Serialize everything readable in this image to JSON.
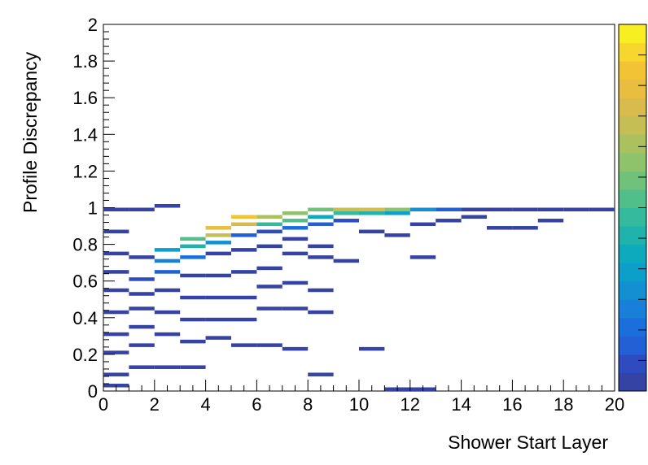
{
  "chart_data": {
    "type": "heatmap",
    "xlabel": "Shower Start Layer",
    "ylabel": "Profile Discrepancy",
    "xlim": [
      0,
      20
    ],
    "ylim": [
      0,
      2
    ],
    "x_ticks": [
      "0",
      "2",
      "4",
      "6",
      "8",
      "10",
      "12",
      "14",
      "16",
      "18",
      "20"
    ],
    "y_ticks": [
      "0",
      "0.2",
      "0.4",
      "0.6",
      "0.8",
      "1",
      "1.2",
      "1.4",
      "1.6",
      "1.8",
      "2"
    ],
    "x_bin_width": 1,
    "y_bin_width": 0.02,
    "colorbar": {
      "levels": 20,
      "ticks": 12,
      "shown_without_labels": true
    },
    "cells": [
      {
        "x": 0,
        "y": 0.98,
        "level": 0
      },
      {
        "x": 0,
        "y": 0.86,
        "level": 0
      },
      {
        "x": 0,
        "y": 0.74,
        "level": 0
      },
      {
        "x": 0,
        "y": 0.64,
        "level": 0
      },
      {
        "x": 0,
        "y": 0.54,
        "level": 0
      },
      {
        "x": 0,
        "y": 0.42,
        "level": 0
      },
      {
        "x": 0,
        "y": 0.3,
        "level": 0
      },
      {
        "x": 0,
        "y": 0.2,
        "level": 0
      },
      {
        "x": 0,
        "y": 0.08,
        "level": 0
      },
      {
        "x": 0,
        "y": 0.02,
        "level": 0
      },
      {
        "x": 1,
        "y": 0.98,
        "level": 0
      },
      {
        "x": 1,
        "y": 0.72,
        "level": 0
      },
      {
        "x": 1,
        "y": 0.6,
        "level": 1
      },
      {
        "x": 1,
        "y": 0.52,
        "level": 0
      },
      {
        "x": 1,
        "y": 0.44,
        "level": 0
      },
      {
        "x": 1,
        "y": 0.34,
        "level": 0
      },
      {
        "x": 1,
        "y": 0.24,
        "level": 0
      },
      {
        "x": 1,
        "y": 0.12,
        "level": 0
      },
      {
        "x": 2,
        "y": 1.0,
        "level": 0
      },
      {
        "x": 2,
        "y": 0.76,
        "level": 6
      },
      {
        "x": 2,
        "y": 0.7,
        "level": 4
      },
      {
        "x": 2,
        "y": 0.64,
        "level": 2
      },
      {
        "x": 2,
        "y": 0.54,
        "level": 0
      },
      {
        "x": 2,
        "y": 0.42,
        "level": 0
      },
      {
        "x": 2,
        "y": 0.3,
        "level": 0
      },
      {
        "x": 2,
        "y": 0.12,
        "level": 0
      },
      {
        "x": 3,
        "y": 0.82,
        "level": 10
      },
      {
        "x": 3,
        "y": 0.78,
        "level": 8
      },
      {
        "x": 3,
        "y": 0.72,
        "level": 3
      },
      {
        "x": 3,
        "y": 0.62,
        "level": 0
      },
      {
        "x": 3,
        "y": 0.5,
        "level": 0
      },
      {
        "x": 3,
        "y": 0.38,
        "level": 0
      },
      {
        "x": 3,
        "y": 0.26,
        "level": 0
      },
      {
        "x": 3,
        "y": 0.12,
        "level": 0
      },
      {
        "x": 4,
        "y": 0.88,
        "level": 16
      },
      {
        "x": 4,
        "y": 0.84,
        "level": 14
      },
      {
        "x": 4,
        "y": 0.8,
        "level": 5
      },
      {
        "x": 4,
        "y": 0.74,
        "level": 0
      },
      {
        "x": 4,
        "y": 0.62,
        "level": 0
      },
      {
        "x": 4,
        "y": 0.5,
        "level": 0
      },
      {
        "x": 4,
        "y": 0.38,
        "level": 0
      },
      {
        "x": 4,
        "y": 0.28,
        "level": 0
      },
      {
        "x": 5,
        "y": 0.94,
        "level": 17
      },
      {
        "x": 5,
        "y": 0.9,
        "level": 15
      },
      {
        "x": 5,
        "y": 0.84,
        "level": 2
      },
      {
        "x": 5,
        "y": 0.76,
        "level": 0
      },
      {
        "x": 5,
        "y": 0.64,
        "level": 0
      },
      {
        "x": 5,
        "y": 0.5,
        "level": 0
      },
      {
        "x": 5,
        "y": 0.38,
        "level": 0
      },
      {
        "x": 5,
        "y": 0.24,
        "level": 0
      },
      {
        "x": 6,
        "y": 0.94,
        "level": 13
      },
      {
        "x": 6,
        "y": 0.9,
        "level": 9
      },
      {
        "x": 6,
        "y": 0.86,
        "level": 1
      },
      {
        "x": 6,
        "y": 0.78,
        "level": 0
      },
      {
        "x": 6,
        "y": 0.66,
        "level": 0
      },
      {
        "x": 6,
        "y": 0.56,
        "level": 0
      },
      {
        "x": 6,
        "y": 0.44,
        "level": 0
      },
      {
        "x": 6,
        "y": 0.24,
        "level": 0
      },
      {
        "x": 7,
        "y": 0.96,
        "level": 12
      },
      {
        "x": 7,
        "y": 0.92,
        "level": 10
      },
      {
        "x": 7,
        "y": 0.88,
        "level": 3
      },
      {
        "x": 7,
        "y": 0.82,
        "level": 0
      },
      {
        "x": 7,
        "y": 0.74,
        "level": 0
      },
      {
        "x": 7,
        "y": 0.58,
        "level": 0
      },
      {
        "x": 7,
        "y": 0.44,
        "level": 0
      },
      {
        "x": 7,
        "y": 0.22,
        "level": 0
      },
      {
        "x": 8,
        "y": 0.98,
        "level": 11
      },
      {
        "x": 8,
        "y": 0.94,
        "level": 7
      },
      {
        "x": 8,
        "y": 0.9,
        "level": 2
      },
      {
        "x": 8,
        "y": 0.78,
        "level": 0
      },
      {
        "x": 8,
        "y": 0.72,
        "level": 0
      },
      {
        "x": 8,
        "y": 0.54,
        "level": 0
      },
      {
        "x": 8,
        "y": 0.42,
        "level": 0
      },
      {
        "x": 8,
        "y": 0.08,
        "level": 0
      },
      {
        "x": 9,
        "y": 0.98,
        "level": 14
      },
      {
        "x": 9,
        "y": 0.96,
        "level": 9
      },
      {
        "x": 9,
        "y": 0.92,
        "level": 1
      },
      {
        "x": 9,
        "y": 0.7,
        "level": 0
      },
      {
        "x": 10,
        "y": 0.98,
        "level": 15
      },
      {
        "x": 10,
        "y": 0.96,
        "level": 8
      },
      {
        "x": 10,
        "y": 0.86,
        "level": 0
      },
      {
        "x": 10,
        "y": 0.22,
        "level": 0
      },
      {
        "x": 11,
        "y": 0.98,
        "level": 12
      },
      {
        "x": 11,
        "y": 0.96,
        "level": 6
      },
      {
        "x": 11,
        "y": 0.84,
        "level": 0
      },
      {
        "x": 11,
        "y": 0.0,
        "level": 0
      },
      {
        "x": 12,
        "y": 0.98,
        "level": 5
      },
      {
        "x": 12,
        "y": 0.9,
        "level": 0
      },
      {
        "x": 12,
        "y": 0.72,
        "level": 0
      },
      {
        "x": 12,
        "y": 0.0,
        "level": 0
      },
      {
        "x": 13,
        "y": 0.98,
        "level": 2
      },
      {
        "x": 13,
        "y": 0.92,
        "level": 0
      },
      {
        "x": 14,
        "y": 0.98,
        "level": 0
      },
      {
        "x": 14,
        "y": 0.94,
        "level": 0
      },
      {
        "x": 15,
        "y": 0.98,
        "level": 0
      },
      {
        "x": 15,
        "y": 0.88,
        "level": 0
      },
      {
        "x": 16,
        "y": 0.98,
        "level": 0
      },
      {
        "x": 16,
        "y": 0.88,
        "level": 0
      },
      {
        "x": 17,
        "y": 0.98,
        "level": 0
      },
      {
        "x": 17,
        "y": 0.92,
        "level": 0
      },
      {
        "x": 18,
        "y": 0.98,
        "level": 0
      },
      {
        "x": 19,
        "y": 0.98,
        "level": 0
      }
    ]
  }
}
